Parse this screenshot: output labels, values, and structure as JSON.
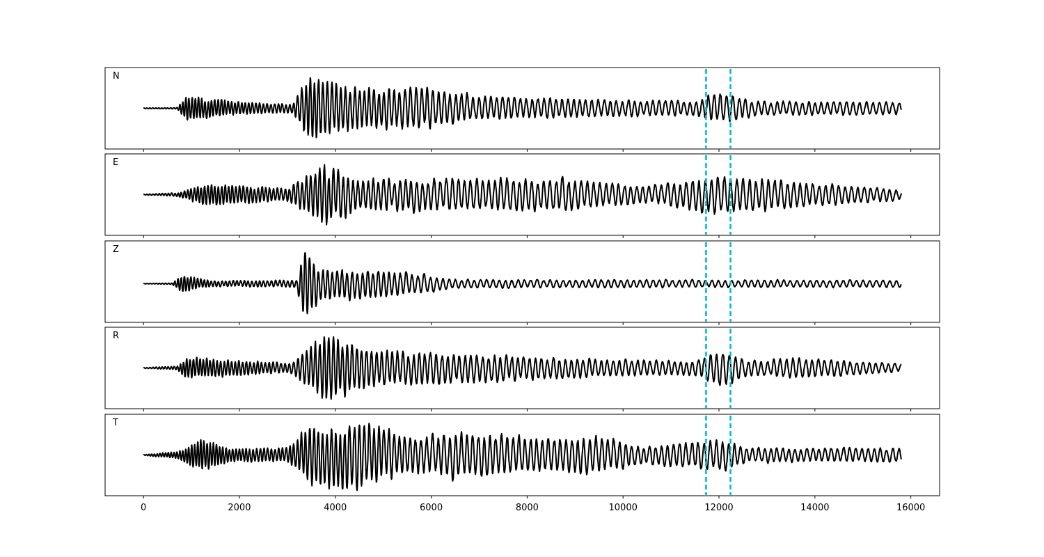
{
  "chart_data": {
    "type": "line",
    "title": "",
    "xlabel": "",
    "ylabel": "",
    "xlim": [
      -800,
      16600
    ],
    "x_ticks": [
      "0",
      "2000",
      "4000",
      "6000",
      "8000",
      "10000",
      "12000",
      "14000",
      "16000"
    ],
    "x_tick_values": [
      0,
      2000,
      4000,
      6000,
      8000,
      10000,
      12000,
      14000,
      16000
    ],
    "grid": false,
    "legend": "none",
    "line_color": "#000000",
    "marker_color": "#00bfc4",
    "time_markers": [
      11730,
      12240
    ],
    "sample_range": [
      0,
      15800
    ],
    "panels": [
      {
        "name": "N",
        "seed": 11,
        "amp_points": [
          [
            0,
            0.01
          ],
          [
            700,
            0.02
          ],
          [
            900,
            0.35
          ],
          [
            2000,
            0.18
          ],
          [
            3100,
            0.12
          ],
          [
            3450,
            0.95
          ],
          [
            4500,
            0.55
          ],
          [
            5700,
            0.6
          ],
          [
            7000,
            0.35
          ],
          [
            9500,
            0.25
          ],
          [
            11500,
            0.2
          ],
          [
            12050,
            0.45
          ],
          [
            12800,
            0.2
          ],
          [
            15800,
            0.18
          ]
        ],
        "period_points": [
          [
            0,
            60
          ],
          [
            3000,
            80
          ],
          [
            6000,
            120
          ],
          [
            15800,
            135
          ]
        ]
      },
      {
        "name": "E",
        "seed": 23,
        "amp_points": [
          [
            0,
            0.01
          ],
          [
            700,
            0.05
          ],
          [
            1300,
            0.3
          ],
          [
            3000,
            0.18
          ],
          [
            3750,
            0.85
          ],
          [
            4500,
            0.45
          ],
          [
            6500,
            0.45
          ],
          [
            8800,
            0.45
          ],
          [
            10500,
            0.25
          ],
          [
            12050,
            0.55
          ],
          [
            13700,
            0.35
          ],
          [
            15800,
            0.15
          ]
        ],
        "period_points": [
          [
            0,
            60
          ],
          [
            3000,
            85
          ],
          [
            6000,
            125
          ],
          [
            15800,
            135
          ]
        ]
      },
      {
        "name": "Z",
        "seed": 37,
        "amp_points": [
          [
            0,
            0.005
          ],
          [
            600,
            0.02
          ],
          [
            800,
            0.25
          ],
          [
            1400,
            0.08
          ],
          [
            3200,
            0.1
          ],
          [
            3330,
            1.0
          ],
          [
            3700,
            0.45
          ],
          [
            5300,
            0.35
          ],
          [
            6500,
            0.12
          ],
          [
            15800,
            0.1
          ]
        ],
        "period_points": [
          [
            0,
            60
          ],
          [
            3300,
            90
          ],
          [
            6000,
            130
          ],
          [
            15800,
            140
          ]
        ]
      },
      {
        "name": "R",
        "seed": 53,
        "amp_points": [
          [
            0,
            0.01
          ],
          [
            700,
            0.05
          ],
          [
            900,
            0.3
          ],
          [
            2000,
            0.2
          ],
          [
            3100,
            0.15
          ],
          [
            3450,
            0.6
          ],
          [
            3800,
            0.95
          ],
          [
            4800,
            0.5
          ],
          [
            7000,
            0.4
          ],
          [
            9500,
            0.25
          ],
          [
            11500,
            0.2
          ],
          [
            12100,
            0.55
          ],
          [
            12600,
            0.2
          ],
          [
            13600,
            0.3
          ],
          [
            15800,
            0.12
          ]
        ],
        "period_points": [
          [
            0,
            60
          ],
          [
            3000,
            85
          ],
          [
            6000,
            120
          ],
          [
            15800,
            135
          ]
        ]
      },
      {
        "name": "T",
        "seed": 71,
        "amp_points": [
          [
            0,
            0.01
          ],
          [
            700,
            0.1
          ],
          [
            1200,
            0.45
          ],
          [
            1800,
            0.2
          ],
          [
            3000,
            0.2
          ],
          [
            3500,
            0.85
          ],
          [
            4600,
            0.95
          ],
          [
            5500,
            0.5
          ],
          [
            6800,
            0.65
          ],
          [
            8500,
            0.45
          ],
          [
            9300,
            0.55
          ],
          [
            10500,
            0.25
          ],
          [
            12100,
            0.45
          ],
          [
            12600,
            0.2
          ],
          [
            15800,
            0.2
          ]
        ],
        "period_points": [
          [
            0,
            55
          ],
          [
            3000,
            80
          ],
          [
            6000,
            120
          ],
          [
            15800,
            130
          ]
        ]
      }
    ]
  }
}
